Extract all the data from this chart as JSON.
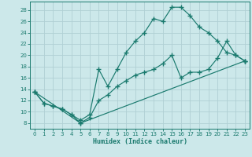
{
  "xlabel": "Humidex (Indice chaleur)",
  "bg_color": "#cce8ea",
  "line_color": "#1a7a6e",
  "grid_color": "#b0d0d4",
  "xlim": [
    -0.5,
    23.5
  ],
  "ylim": [
    7,
    29.5
  ],
  "xticks": [
    0,
    1,
    2,
    3,
    4,
    5,
    6,
    7,
    8,
    9,
    10,
    11,
    12,
    13,
    14,
    15,
    16,
    17,
    18,
    19,
    20,
    21,
    22,
    23
  ],
  "yticks": [
    8,
    10,
    12,
    14,
    16,
    18,
    20,
    22,
    24,
    26,
    28
  ],
  "line1_x": [
    0,
    1,
    2,
    3,
    4,
    5,
    6,
    7,
    8,
    9,
    10,
    11,
    12,
    13,
    14,
    15,
    16,
    17,
    18,
    19,
    20,
    21,
    22,
    23
  ],
  "line1_y": [
    13.5,
    11.5,
    11.0,
    10.5,
    9.5,
    8.5,
    9.5,
    17.5,
    14.5,
    17.5,
    20.5,
    22.5,
    24.0,
    26.5,
    26.0,
    28.5,
    28.5,
    27.0,
    25.0,
    24.0,
    22.5,
    20.5,
    20.0,
    19.0
  ],
  "line2_x": [
    0,
    1,
    2,
    3,
    4,
    5,
    6,
    7,
    8,
    9,
    10,
    11,
    12,
    13,
    14,
    15,
    16,
    17,
    18,
    19,
    20,
    21,
    22,
    23
  ],
  "line2_y": [
    13.5,
    11.5,
    11.0,
    10.5,
    9.5,
    8.0,
    9.0,
    12.0,
    13.0,
    14.5,
    15.5,
    16.5,
    17.0,
    17.5,
    18.5,
    20.0,
    16.0,
    17.0,
    17.0,
    17.5,
    19.5,
    22.5,
    20.0,
    19.0
  ],
  "line3_x": [
    0,
    5,
    23
  ],
  "line3_y": [
    13.5,
    8.0,
    19.0
  ]
}
